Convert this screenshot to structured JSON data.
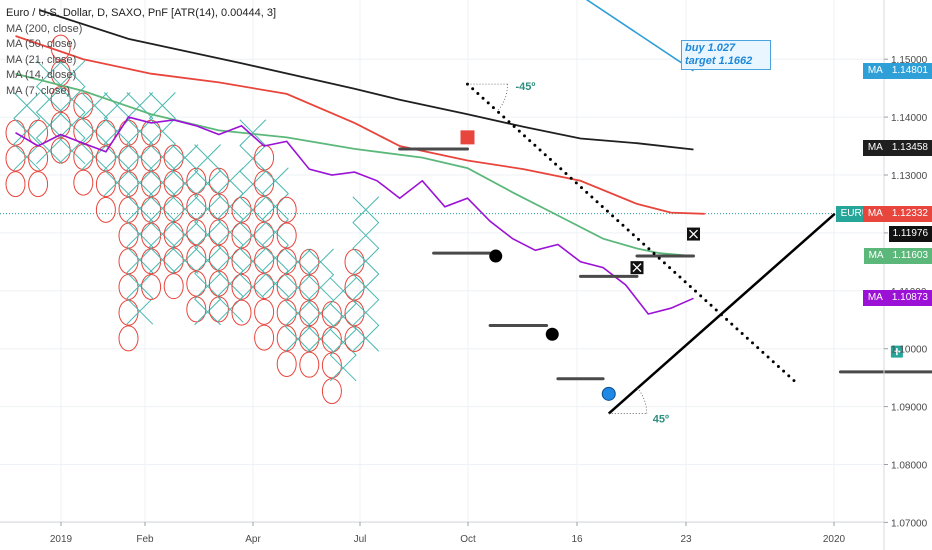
{
  "legend": {
    "title": "Euro / U.S. Dollar, D, SAXO, PnF [ATR(14), 0.00444, 3]",
    "items": [
      "MA (200, close)",
      "MA (50, close)",
      "MA (21, close)",
      "MA (14, close)",
      "MA (7, close)"
    ]
  },
  "annotation": {
    "line1": "buy 1.027",
    "line2": "target 1.1662"
  },
  "angle_labels": {
    "top": "-45º",
    "bottom": "45º"
  },
  "colors": {
    "ma200": "#1f1f1f",
    "ma50": "#e8453c",
    "ma21": "#5cb87a",
    "ma14": "#9b11d6",
    "ma7": "#2f9fd8",
    "ohlc": "#48b8b0",
    "oval": "#e8453c",
    "badge_eurusd": "#26a69a"
  },
  "chart_data": {
    "type": "pnf",
    "ylim": [
      1.065,
      1.158
    ],
    "y_ticks": [
      "1.15000",
      "1.14000",
      "1.13000",
      "1.12000",
      "1.11000",
      "1.10000",
      "1.09000",
      "1.08000",
      "1.07000"
    ],
    "x_ticks": [
      "2019",
      "Feb",
      "Apr",
      "Jul",
      "Oct",
      "16",
      "23",
      "2020"
    ],
    "last_price": 1.12332,
    "price_badges": [
      {
        "label": "MA",
        "value": "1.14801",
        "color": "#2f9fd8",
        "y": 1.14801
      },
      {
        "label": "MA",
        "value": "1.13458",
        "color": "#1f1f1f",
        "y": 1.13458
      },
      {
        "label": "EURUSD",
        "value": "1.12332",
        "color": "#26a69a",
        "y": 1.12332
      },
      {
        "label": "MA",
        "value": "1.12332",
        "color": "#e8453c",
        "y": 1.12332
      },
      {
        "label": "",
        "value": "1.11976",
        "color": "#111111",
        "y": 1.11976
      },
      {
        "label": "MA",
        "value": "1.11603",
        "color": "#5cb87a",
        "y": 1.11603
      },
      {
        "label": "MA",
        "value": "1.10873",
        "color": "#9b11d6",
        "y": 1.10873
      }
    ],
    "columns": [
      {
        "type": "O",
        "top": 1.1373,
        "bottom": 1.129
      },
      {
        "type": "X",
        "top": 1.142,
        "bottom": 1.133
      },
      {
        "type": "O",
        "top": 1.1373,
        "bottom": 1.129
      },
      {
        "type": "X",
        "top": 1.1475,
        "bottom": 1.133
      },
      {
        "type": "O",
        "top": 1.152,
        "bottom": 1.133
      },
      {
        "type": "X",
        "top": 1.1475,
        "bottom": 1.133
      },
      {
        "type": "O",
        "top": 1.142,
        "bottom": 1.129
      },
      {
        "type": "X",
        "top": 1.142,
        "bottom": 1.133
      },
      {
        "type": "O",
        "top": 1.1373,
        "bottom": 1.124
      },
      {
        "type": "X",
        "top": 1.142,
        "bottom": 1.129
      },
      {
        "type": "O",
        "top": 1.1373,
        "bottom": 1.101
      },
      {
        "type": "X",
        "top": 1.142,
        "bottom": 1.106
      },
      {
        "type": "O",
        "top": 1.1373,
        "bottom": 1.11
      },
      {
        "type": "X",
        "top": 1.142,
        "bottom": 1.115
      },
      {
        "type": "O",
        "top": 1.133,
        "bottom": 1.11
      },
      {
        "type": "X",
        "top": 1.133,
        "bottom": 1.115
      },
      {
        "type": "O",
        "top": 1.129,
        "bottom": 1.106
      },
      {
        "type": "X",
        "top": 1.133,
        "bottom": 1.106
      },
      {
        "type": "O",
        "top": 1.129,
        "bottom": 1.106
      },
      {
        "type": "X",
        "top": 1.129,
        "bottom": 1.106
      },
      {
        "type": "O",
        "top": 1.124,
        "bottom": 1.106
      },
      {
        "type": "X",
        "top": 1.1373,
        "bottom": 1.11
      },
      {
        "type": "O",
        "top": 1.133,
        "bottom": 1.101
      },
      {
        "type": "X",
        "top": 1.129,
        "bottom": 1.11
      },
      {
        "type": "O",
        "top": 1.124,
        "bottom": 1.0965
      },
      {
        "type": "X",
        "top": 1.115,
        "bottom": 1.101
      },
      {
        "type": "O",
        "top": 1.115,
        "bottom": 1.0965
      },
      {
        "type": "X",
        "top": 1.115,
        "bottom": 1.101
      },
      {
        "type": "O",
        "top": 1.106,
        "bottom": 1.092
      },
      {
        "type": "X",
        "top": 1.11,
        "bottom": 1.0965
      },
      {
        "type": "O",
        "top": 1.115,
        "bottom": 1.101
      },
      {
        "type": "X",
        "top": 1.124,
        "bottom": 1.101
      }
    ],
    "ma_lines": [
      {
        "name": "MA (200, close)",
        "color": "#1f1f1f",
        "x": [
          2.1,
          10,
          20,
          30,
          34,
          40,
          45,
          50,
          55,
          60
        ],
        "y": [
          1.1585,
          1.1535,
          1.1493,
          1.1449,
          1.143,
          1.1405,
          1.1383,
          1.1363,
          1.1355,
          1.1344
        ]
      },
      {
        "name": "MA (50, close)",
        "color": "#e8453c",
        "x": [
          0,
          6,
          12,
          18,
          24,
          30,
          34,
          40,
          45,
          50,
          55,
          58,
          61
        ],
        "y": [
          1.154,
          1.15,
          1.1475,
          1.146,
          1.144,
          1.139,
          1.135,
          1.1325,
          1.131,
          1.129,
          1.125,
          1.1235,
          1.1233
        ]
      },
      {
        "name": "MA (21, close)",
        "color": "#5cb87a",
        "x": [
          0,
          6,
          12,
          18,
          24,
          30,
          36,
          40,
          44,
          48,
          52,
          55,
          57,
          60
        ],
        "y": [
          1.1475,
          1.1445,
          1.1405,
          1.1377,
          1.1365,
          1.1345,
          1.133,
          1.1312,
          1.127,
          1.123,
          1.119,
          1.1173,
          1.1165,
          1.116
        ]
      },
      {
        "name": "MA (14, close)",
        "color": "#9b11d6",
        "x": [
          0,
          2,
          4,
          6,
          8,
          10,
          12,
          14,
          16,
          18,
          20,
          22,
          24,
          26,
          28,
          30,
          32,
          34,
          36,
          38,
          40,
          42,
          44,
          46,
          48,
          50,
          52,
          54,
          56,
          58,
          60
        ],
        "y": [
          1.1373,
          1.135,
          1.137,
          1.1355,
          1.134,
          1.14,
          1.139,
          1.1395,
          1.1385,
          1.137,
          1.1385,
          1.135,
          1.1358,
          1.131,
          1.13,
          1.1305,
          1.129,
          1.126,
          1.129,
          1.1245,
          1.126,
          1.122,
          1.119,
          1.117,
          1.118,
          1.115,
          1.114,
          1.111,
          1.106,
          1.107,
          1.1087
        ]
      }
    ],
    "ma7_segment": {
      "x": [
        50,
        60
      ],
      "y": [
        1.161,
        1.148
      ]
    },
    "hlines": [
      {
        "x1": 34,
        "x2": 40,
        "y": 1.1345
      },
      {
        "x1": 37,
        "x2": 42,
        "y": 1.1165
      },
      {
        "x1": 42,
        "x2": 47,
        "y": 1.104
      },
      {
        "x1": 48,
        "x2": 52,
        "y": 1.0948
      },
      {
        "x1": 50,
        "x2": 55,
        "y": 1.1125
      },
      {
        "x1": 55,
        "x2": 60,
        "y": 1.116
      },
      {
        "x1": 73,
        "x2": 83,
        "y": 1.096
      }
    ],
    "trendlines": [
      {
        "kind": "solid",
        "x1": 52.5,
        "y1": 1.0888,
        "x2": 72.5,
        "y2": 1.1233
      },
      {
        "kind": "dotted",
        "x1": 40,
        "y1": 1.1457,
        "x2": 69,
        "y2": 1.0943
      }
    ],
    "markers": [
      {
        "kind": "red-square",
        "x": 40,
        "y": 1.1365
      },
      {
        "kind": "black-circle",
        "x": 42.5,
        "y": 1.116
      },
      {
        "kind": "black-circle",
        "x": 47.5,
        "y": 1.1025
      },
      {
        "kind": "blue-circle",
        "x": 52.5,
        "y": 1.0922
      },
      {
        "kind": "black-square-x",
        "x": 55,
        "y": 1.114
      },
      {
        "kind": "black-square-x",
        "x": 60,
        "y": 1.1198
      },
      {
        "kind": "teal-plus-square",
        "x": 78,
        "y": 1.0995
      }
    ]
  }
}
